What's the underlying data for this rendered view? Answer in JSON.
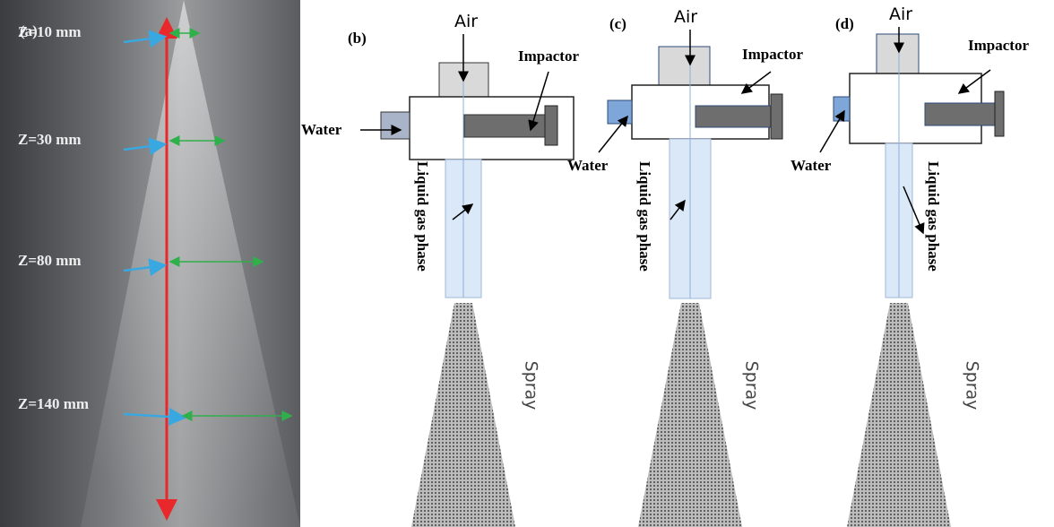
{
  "panel_a": {
    "label": "(a)",
    "positions": [
      "Z=10 mm",
      "Z=30 mm",
      "Z=80 mm",
      "Z=140 mm"
    ]
  },
  "panels": [
    {
      "label": "(b)",
      "air": "Air",
      "impactor": "Impactor",
      "water": "Water",
      "liquid": "Liquid gas phase",
      "spray": "Spray"
    },
    {
      "label": "(c)",
      "air": "Air",
      "impactor": "Impactor",
      "water": "Water",
      "liquid": "Liquid gas phase",
      "spray": "Spray"
    },
    {
      "label": "(d)",
      "air": "Air",
      "impactor": "Impactor",
      "water": "Water",
      "liquid": "Liquid gas phase",
      "spray": "Spray"
    }
  ]
}
